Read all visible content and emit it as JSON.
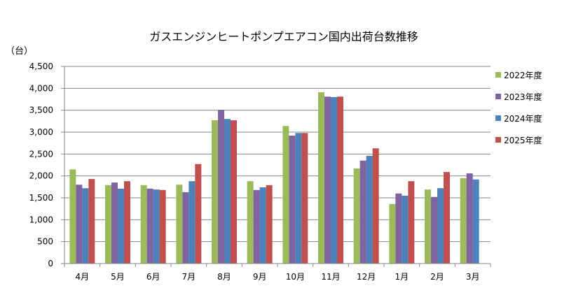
{
  "chart_data": {
    "type": "bar",
    "title": "ガスエンジンヒートポンプエアコン国内出荷台数推移",
    "ylabel": "（台）",
    "xlabel": "",
    "ylim": [
      0,
      4500
    ],
    "ytick_step": 500,
    "yticks": [
      "0",
      "500",
      "1,000",
      "1,500",
      "2,000",
      "2,500",
      "3,000",
      "3,500",
      "4,000",
      "4,500"
    ],
    "grid": true,
    "legend_position": "right",
    "categories": [
      "4月",
      "5月",
      "6月",
      "7月",
      "8月",
      "9月",
      "10月",
      "11月",
      "12月",
      "1月",
      "2月",
      "3月"
    ],
    "series": [
      {
        "name": "2022年度",
        "color": "#9BBB59",
        "values": [
          2150,
          1790,
          1790,
          1800,
          3270,
          1880,
          3140,
          3910,
          2170,
          1360,
          1690,
          1950
        ]
      },
      {
        "name": "2023年度",
        "color": "#8064A2",
        "values": [
          1800,
          1850,
          1710,
          1630,
          3510,
          1680,
          2920,
          3810,
          2350,
          1600,
          1520,
          2060
        ]
      },
      {
        "name": "2024年度",
        "color": "#4F81BD",
        "values": [
          1720,
          1710,
          1690,
          1880,
          3300,
          1740,
          2980,
          3800,
          2460,
          1550,
          1720,
          1920
        ]
      },
      {
        "name": "2025年度",
        "color": "#C0504D",
        "values": [
          1930,
          1880,
          1680,
          2270,
          3270,
          1790,
          2980,
          3810,
          2630,
          1880,
          2090,
          null
        ]
      }
    ]
  }
}
